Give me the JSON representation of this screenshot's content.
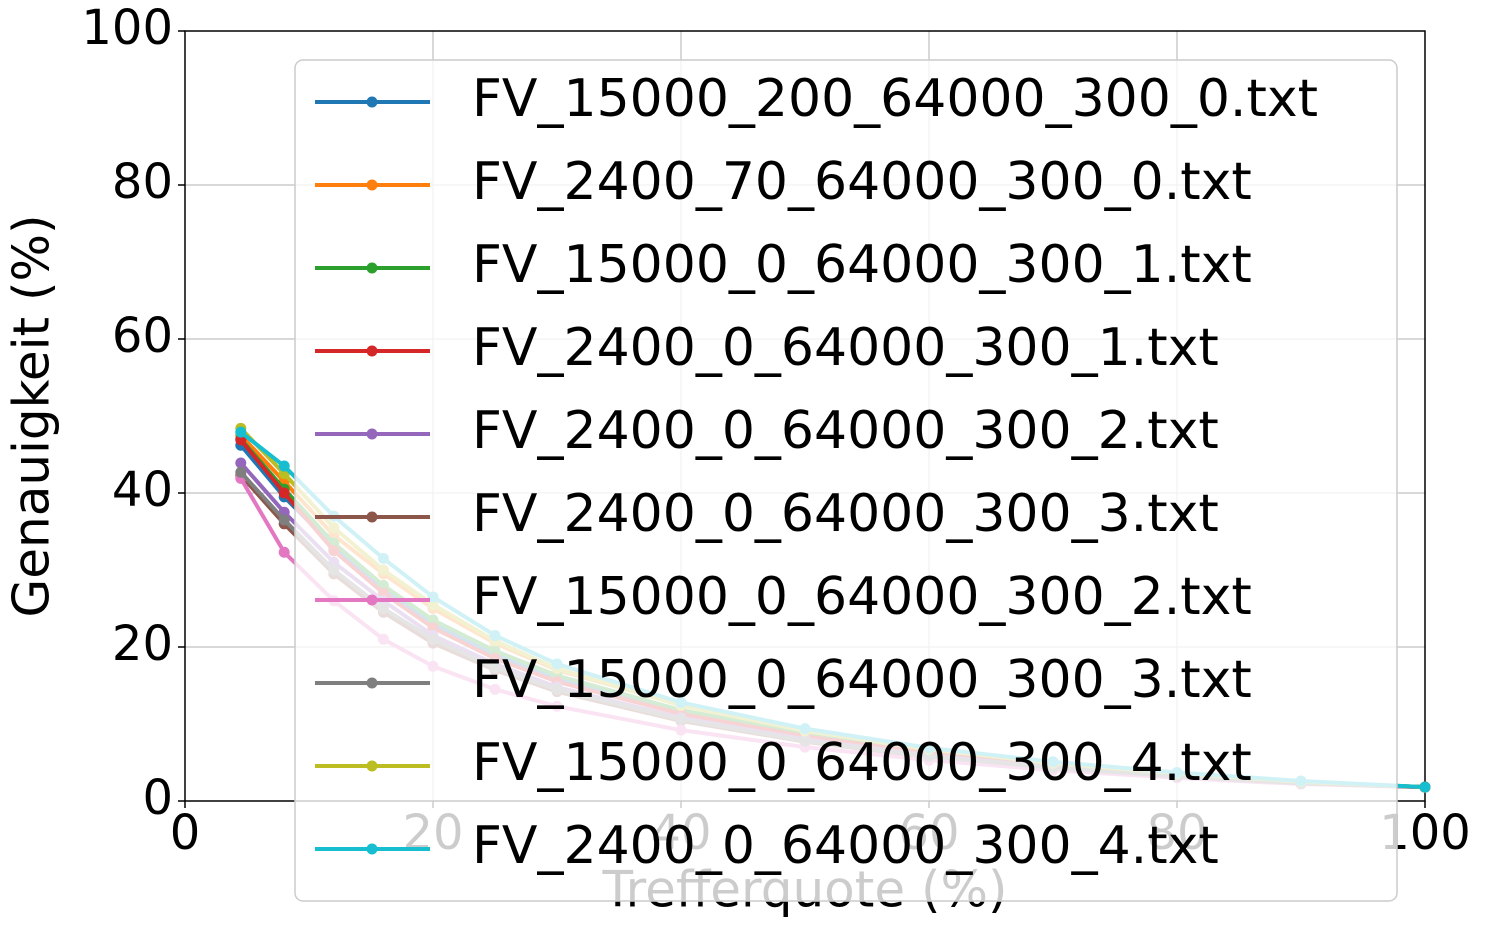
{
  "chart_data": {
    "type": "line",
    "x_label": "Trefferquote (%)",
    "y_label": "Genauigkeit (%)",
    "x": [
      4.5,
      8,
      12,
      16,
      20,
      25,
      30,
      40,
      50,
      60,
      70,
      80,
      90,
      100
    ],
    "series": [
      {
        "name": "FV_15000_200_64000_300_0.txt",
        "color": "#1f77b4",
        "values": [
          46.2,
          39.5,
          33,
          27.5,
          23,
          19,
          15.8,
          11.5,
          8.5,
          6.3,
          4.6,
          3.4,
          2.4,
          1.8
        ]
      },
      {
        "name": "FV_2400_70_64000_300_0.txt",
        "color": "#ff7f0e",
        "values": [
          47.5,
          41.5,
          34.5,
          29.5,
          25,
          20.5,
          17,
          12.5,
          9.3,
          6.9,
          5,
          3.6,
          2.5,
          1.8
        ]
      },
      {
        "name": "FV_15000_0_64000_300_1.txt",
        "color": "#2ca02c",
        "values": [
          47,
          40.5,
          33.5,
          28,
          23.5,
          19.5,
          16.3,
          11.8,
          8.8,
          6.5,
          4.8,
          3.5,
          2.5,
          1.8
        ]
      },
      {
        "name": "FV_2400_0_64000_300_1.txt",
        "color": "#d62728",
        "values": [
          46.9,
          40,
          32.5,
          27,
          22.5,
          18.5,
          15.5,
          11.3,
          8.4,
          6.2,
          4.6,
          3.4,
          2.4,
          1.8
        ]
      },
      {
        "name": "FV_2400_0_64000_300_2.txt",
        "color": "#9467bd",
        "values": [
          43.9,
          37.5,
          31,
          26,
          21.5,
          17.8,
          14.8,
          10.8,
          8,
          5.9,
          4.4,
          3.2,
          2.3,
          1.8
        ]
      },
      {
        "name": "FV_2400_0_64000_300_3.txt",
        "color": "#8c564b",
        "values": [
          42.3,
          36,
          29.5,
          24.5,
          20.5,
          17,
          14.2,
          10.4,
          7.7,
          5.7,
          4.3,
          3.1,
          2.3,
          1.8
        ]
      },
      {
        "name": "FV_15000_0_64000_300_2.txt",
        "color": "#e377c2",
        "values": [
          41.9,
          32.3,
          26,
          21,
          17.5,
          14.5,
          12.3,
          9.2,
          7,
          5.3,
          4,
          3,
          2.2,
          1.8
        ]
      },
      {
        "name": "FV_15000_0_64000_300_3.txt",
        "color": "#7f7f7f",
        "values": [
          42.7,
          36.5,
          30,
          25,
          21,
          17.3,
          14.5,
          10.6,
          7.8,
          5.8,
          4.3,
          3.2,
          2.3,
          1.8
        ]
      },
      {
        "name": "FV_15000_0_64000_300_4.txt",
        "color": "#bcbd22",
        "values": [
          48.4,
          42.5,
          35.5,
          30,
          25.5,
          20.8,
          17.2,
          12.4,
          9.1,
          6.7,
          4.9,
          3.6,
          2.5,
          1.8
        ]
      },
      {
        "name": "FV_2400_0_64000_300_4.txt",
        "color": "#17becf",
        "values": [
          47.9,
          43.5,
          37,
          31.5,
          26.5,
          21.5,
          17.8,
          12.8,
          9.4,
          6.9,
          5.1,
          3.7,
          2.6,
          1.8
        ]
      }
    ],
    "xlim": [
      0,
      100
    ],
    "ylim": [
      0,
      100
    ],
    "xticks": [
      0,
      20,
      40,
      60,
      80,
      100
    ],
    "yticks": [
      0,
      20,
      40,
      60,
      80,
      100
    ],
    "grid": true,
    "legend": "upper right"
  }
}
